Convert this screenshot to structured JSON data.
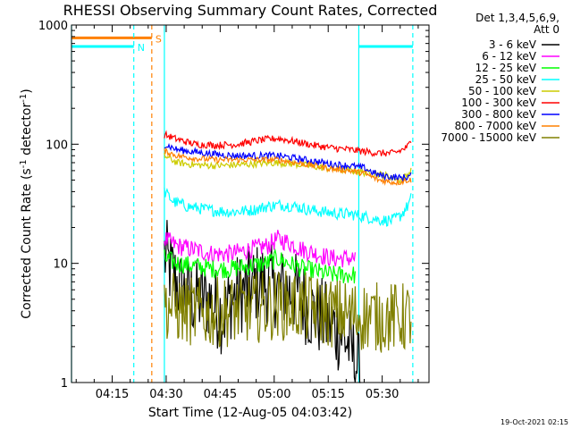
{
  "chart_data": {
    "type": "line",
    "title": "RHESSI Observing Summary Count Rates, Corrected",
    "xlabel": "Start Time (12-Aug-05 04:03:42)",
    "ylabel": "Corrected Count Rate (s",
    "ylabel_sup1": "-1",
    "ylabel_mid": " detector",
    "ylabel_sup2": "-1",
    "ylabel_end": ")",
    "y_scale": "log",
    "ylim": [
      1,
      1000
    ],
    "xlim": [
      "04:03:42",
      "05:43:00"
    ],
    "y_ticks": [
      {
        "value": 1,
        "label": "1"
      },
      {
        "value": 10,
        "label": "10"
      },
      {
        "value": 100,
        "label": "100"
      },
      {
        "value": 1000,
        "label": "1000"
      }
    ],
    "x_ticks": [
      {
        "time": "04:15",
        "label": "04:15"
      },
      {
        "time": "04:30",
        "label": "04:30"
      },
      {
        "time": "04:45",
        "label": "04:45"
      },
      {
        "time": "05:00",
        "label": "05:00"
      },
      {
        "time": "05:15",
        "label": "05:15"
      },
      {
        "time": "05:30",
        "label": "05:30"
      }
    ],
    "legend_header": [
      "Det 1,3,4,5,6,9,",
      "Att 0"
    ],
    "legend_position": "right",
    "series": [
      {
        "name": "3 - 6 keV",
        "color": "#000000",
        "noise": 0.35,
        "t": [
          "04:29:30",
          "04:31",
          "04:34",
          "04:38",
          "04:42",
          "04:46",
          "04:48",
          "04:52",
          "04:56",
          "04:59",
          "05:03",
          "05:07",
          "05:10",
          "05:13",
          "05:16",
          "05:19",
          "05:21",
          "05:23",
          "05:24"
        ],
        "y": [
          12,
          9,
          6,
          5,
          5,
          3.6,
          5,
          6,
          7,
          6.5,
          6,
          5.5,
          4,
          3.5,
          3,
          2.5,
          2,
          1.4,
          1
        ]
      },
      {
        "name": "6 - 12 keV",
        "color": "#ff00ff",
        "noise": 0.08,
        "t": [
          "04:29:30",
          "04:33",
          "04:38",
          "04:43",
          "04:48",
          "04:53",
          "04:58",
          "05:01",
          "05:04",
          "05:08",
          "05:12",
          "05:16",
          "05:20",
          "05:22:30"
        ],
        "y": [
          16,
          14,
          13,
          12,
          12,
          13,
          14,
          16,
          15,
          13,
          12,
          11,
          11,
          11
        ]
      },
      {
        "name": "12 - 25 keV",
        "color": "#00ff00",
        "noise": 0.08,
        "t": [
          "04:29:30",
          "04:33",
          "04:38",
          "04:43",
          "04:48",
          "04:53",
          "04:58",
          "05:01",
          "05:04",
          "05:08",
          "05:12",
          "05:16",
          "05:20",
          "05:22:30"
        ],
        "y": [
          11,
          10,
          9.5,
          9,
          9,
          9.5,
          10,
          11,
          10,
          9,
          8.5,
          8,
          8,
          8
        ]
      },
      {
        "name": "25 - 50 keV",
        "color": "#00ffff",
        "noise": 0.05,
        "t": [
          "04:29:30",
          "04:32",
          "04:36",
          "04:42",
          "04:48",
          "04:54",
          "04:58",
          "05:02",
          "05:06",
          "05:10",
          "05:14",
          "05:18",
          "05:21",
          "05:24",
          "05:27",
          "05:30",
          "05:33",
          "05:35",
          "05:37",
          "05:38"
        ],
        "y": [
          40,
          33,
          30,
          28,
          27,
          28,
          30,
          31,
          30,
          28,
          27,
          26,
          26,
          25,
          24,
          23,
          23,
          25,
          30,
          35
        ]
      },
      {
        "name": "50 - 100 keV",
        "color": "#cccc00",
        "noise": 0.03,
        "t": [
          "04:29:30",
          "04:33",
          "04:38",
          "04:44",
          "04:50",
          "04:56",
          "05:01",
          "05:06",
          "05:11",
          "05:16",
          "05:21",
          "05:25",
          "05:29",
          "05:33",
          "05:35",
          "05:37",
          "05:38"
        ],
        "y": [
          80,
          70,
          67,
          66,
          67,
          69,
          70,
          68,
          65,
          62,
          60,
          58,
          56,
          53,
          50,
          55,
          60
        ]
      },
      {
        "name": "100 - 300 keV",
        "color": "#ff0000",
        "noise": 0.03,
        "t": [
          "04:29:30",
          "04:33",
          "04:38",
          "04:44",
          "04:50",
          "04:56",
          "05:01",
          "05:06",
          "05:11",
          "05:16",
          "05:21",
          "05:25",
          "05:29",
          "05:33",
          "05:35",
          "05:37",
          "05:38"
        ],
        "y": [
          120,
          110,
          100,
          98,
          100,
          108,
          112,
          105,
          98,
          93,
          90,
          87,
          84,
          84,
          88,
          95,
          105
        ]
      },
      {
        "name": "300 - 800 keV",
        "color": "#0000ff",
        "noise": 0.03,
        "t": [
          "04:29:30",
          "04:33",
          "04:38",
          "04:44",
          "04:50",
          "04:56",
          "05:01",
          "05:06",
          "05:11",
          "05:16",
          "05:21",
          "05:25",
          "05:29",
          "05:33",
          "05:35",
          "05:37",
          "05:38"
        ],
        "y": [
          100,
          90,
          86,
          82,
          80,
          80,
          80,
          76,
          72,
          68,
          66,
          63,
          55,
          53,
          52,
          53,
          55
        ]
      },
      {
        "name": "800 - 7000 keV",
        "color": "#ff8000",
        "noise": 0.025,
        "t": [
          "04:29:30",
          "04:33",
          "04:38",
          "04:44",
          "04:50",
          "04:56",
          "05:01",
          "05:06",
          "05:11",
          "05:16",
          "05:21",
          "05:25",
          "05:29",
          "05:33",
          "05:35",
          "05:37",
          "05:38"
        ],
        "y": [
          88,
          80,
          76,
          74,
          74,
          74,
          74,
          70,
          66,
          62,
          60,
          57,
          50,
          48,
          48,
          50,
          50
        ]
      },
      {
        "name": "7000 - 15000 keV",
        "color": "#808000",
        "noise": 0.3,
        "t": [
          "04:29:30",
          "04:35",
          "04:42",
          "04:48",
          "04:54",
          "05:00",
          "05:06",
          "05:12",
          "05:18",
          "05:24",
          "05:30",
          "05:36",
          "05:38"
        ],
        "y": [
          4.5,
          4,
          3.8,
          4,
          4.2,
          4.5,
          4.4,
          4,
          3.8,
          3.6,
          3.5,
          3.5,
          3.6
        ]
      }
    ],
    "flags": [
      {
        "code": "S",
        "color": "#ff8000",
        "t_start": "04:03:42",
        "t_end": "04:26",
        "level": 780,
        "style": "dashed",
        "marker_times": [
          "04:26"
        ]
      },
      {
        "code": "N",
        "color": "#00ffff",
        "t_start": "04:03:42",
        "t_end": "04:21",
        "level": 660,
        "style": "dashed",
        "marker_times": [
          "04:21"
        ]
      },
      {
        "code": "",
        "color": "#00ffff",
        "t_start": "05:23:30",
        "t_end": "05:38:30",
        "level": 660,
        "style": "dashed",
        "marker_times": [
          "05:38:30"
        ]
      }
    ],
    "vertical_lines": [
      {
        "time": "04:03:42",
        "color": "#00ffff",
        "style": "solid"
      },
      {
        "time": "04:29:30",
        "color": "#00ffff",
        "style": "solid"
      },
      {
        "time": "05:23:30",
        "color": "#00ffff",
        "style": "solid"
      }
    ]
  },
  "footer_timestamp": "19-Oct-2021 02:15"
}
